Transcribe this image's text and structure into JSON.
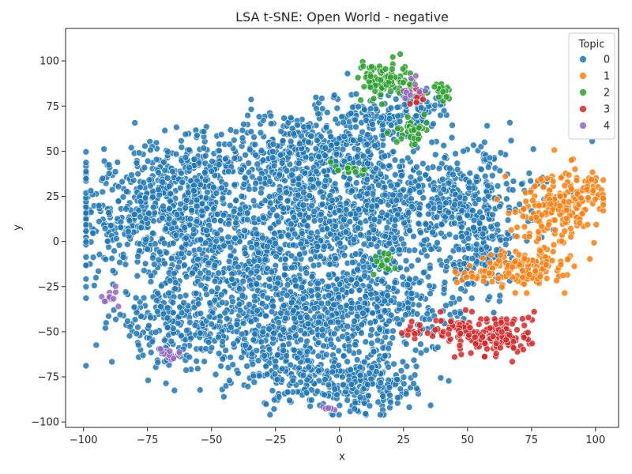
{
  "chart_data": {
    "type": "scatter",
    "title": "LSA t-SNE: Open World - negative",
    "xlabel": "x",
    "ylabel": "y",
    "xlim": [
      -107,
      109
    ],
    "ylim": [
      -103,
      118
    ],
    "xticks": [
      -100,
      -75,
      -50,
      -25,
      0,
      25,
      50,
      75,
      100
    ],
    "yticks": [
      -100,
      -75,
      -50,
      -25,
      0,
      25,
      50,
      75,
      100
    ],
    "grid": false,
    "legend": {
      "title": "Topic",
      "position": "top-right"
    },
    "series": [
      {
        "name": "0",
        "color": "#1f77b4",
        "clusters": [
          {
            "cx": -78,
            "cy": 15,
            "sx": 16,
            "sy": 20,
            "n": 420
          },
          {
            "cx": -55,
            "cy": 28,
            "sx": 10,
            "sy": 15,
            "n": 260
          },
          {
            "cx": -20,
            "cy": 45,
            "sx": 14,
            "sy": 14,
            "n": 320
          },
          {
            "cx": 5,
            "cy": 55,
            "sx": 12,
            "sy": 12,
            "n": 220
          },
          {
            "cx": -40,
            "cy": -10,
            "sx": 16,
            "sy": 18,
            "n": 380
          },
          {
            "cx": -10,
            "cy": 10,
            "sx": 14,
            "sy": 16,
            "n": 380
          },
          {
            "cx": 20,
            "cy": 15,
            "sx": 14,
            "sy": 16,
            "n": 300
          },
          {
            "cx": 48,
            "cy": 25,
            "sx": 14,
            "sy": 14,
            "n": 280
          },
          {
            "cx": 55,
            "cy": -5,
            "sx": 10,
            "sy": 14,
            "n": 160
          },
          {
            "cx": -65,
            "cy": -45,
            "sx": 12,
            "sy": 12,
            "n": 220
          },
          {
            "cx": -30,
            "cy": -50,
            "sx": 14,
            "sy": 14,
            "n": 320
          },
          {
            "cx": -5,
            "cy": -40,
            "sx": 12,
            "sy": 14,
            "n": 260
          },
          {
            "cx": 20,
            "cy": -35,
            "sx": 14,
            "sy": 14,
            "n": 280
          },
          {
            "cx": 10,
            "cy": -80,
            "sx": 10,
            "sy": 8,
            "n": 200
          },
          {
            "cx": -15,
            "cy": -75,
            "sx": 8,
            "sy": 8,
            "n": 120
          },
          {
            "cx": 25,
            "cy": 70,
            "sx": 10,
            "sy": 8,
            "n": 120
          }
        ]
      },
      {
        "name": "1",
        "color": "#ff7f0e",
        "clusters": [
          {
            "cx": 85,
            "cy": 20,
            "sx": 8,
            "sy": 10,
            "n": 180
          },
          {
            "cx": 98,
            "cy": 28,
            "sx": 4,
            "sy": 4,
            "n": 40
          },
          {
            "cx": 72,
            "cy": -15,
            "sx": 8,
            "sy": 5,
            "n": 150
          },
          {
            "cx": 54,
            "cy": -19,
            "sx": 4,
            "sy": 2,
            "n": 25
          }
        ]
      },
      {
        "name": "2",
        "color": "#2ca02c",
        "clusters": [
          {
            "cx": 17,
            "cy": 90,
            "sx": 5,
            "sy": 5,
            "n": 90
          },
          {
            "cx": 28,
            "cy": 60,
            "sx": 3,
            "sy": 4,
            "n": 35
          },
          {
            "cx": 40,
            "cy": 83,
            "sx": 2,
            "sy": 3,
            "n": 20
          },
          {
            "cx": 4,
            "cy": 40,
            "sx": 3,
            "sy": 2,
            "n": 15
          },
          {
            "cx": 18,
            "cy": -12,
            "sx": 2,
            "sy": 5,
            "n": 18
          }
        ]
      },
      {
        "name": "3",
        "color": "#d62728",
        "clusters": [
          {
            "cx": 62,
            "cy": -52,
            "sx": 7,
            "sy": 6,
            "n": 150
          },
          {
            "cx": 45,
            "cy": -50,
            "sx": 4,
            "sy": 4,
            "n": 40
          },
          {
            "cx": 30,
            "cy": -50,
            "sx": 2,
            "sy": 3,
            "n": 15
          },
          {
            "cx": 30,
            "cy": 80,
            "sx": 3,
            "sy": 2,
            "n": 10
          }
        ]
      },
      {
        "name": "4",
        "color": "#9467bd",
        "clusters": [
          {
            "cx": -67,
            "cy": -62,
            "sx": 3,
            "sy": 3,
            "n": 15
          },
          {
            "cx": -90,
            "cy": -30,
            "sx": 2,
            "sy": 4,
            "n": 12
          },
          {
            "cx": 30,
            "cy": 85,
            "sx": 3,
            "sy": 3,
            "n": 10
          },
          {
            "cx": -4,
            "cy": -93,
            "sx": 2,
            "sy": 1,
            "n": 6
          }
        ]
      }
    ]
  }
}
